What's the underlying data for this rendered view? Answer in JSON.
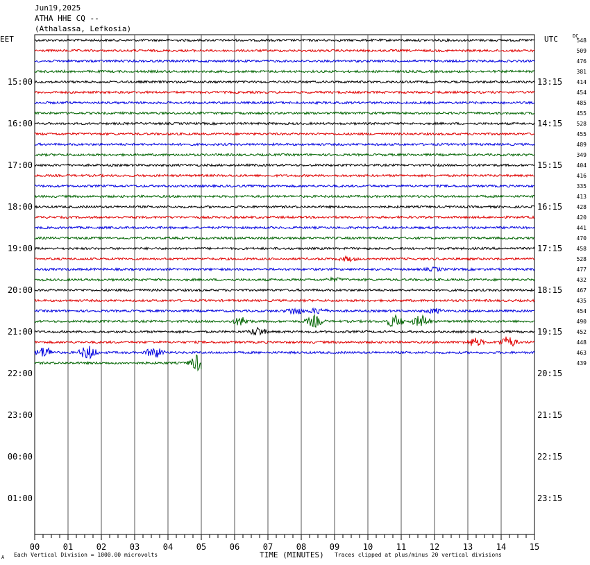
{
  "header": {
    "date": "Jun19,2025",
    "station": "ATHA HHE CQ --",
    "location": "(Athalassa, Lefkosia)"
  },
  "left_label": "EET",
  "right_label": "UTC",
  "dc_label": "DC",
  "footer": {
    "xlabel": "TIME (MINUTES)",
    "scale_note": "Each Vertical Division = 1000.00 microvolts",
    "clip_note": "Traces clipped at plus/minus 20 vertical divisions",
    "corner_mark": "A"
  },
  "chart_data": {
    "type": "line",
    "x_ticks": [
      "00",
      "01",
      "02",
      "03",
      "04",
      "05",
      "06",
      "07",
      "08",
      "09",
      "10",
      "11",
      "12",
      "13",
      "14",
      "15"
    ],
    "xlim": [
      0,
      15
    ],
    "grid": "vertical lines each minute",
    "left_hour_labels": [
      "15:00",
      "16:00",
      "17:00",
      "18:00",
      "19:00",
      "20:00",
      "21:00",
      "22:00",
      "23:00",
      "00:00",
      "01:00"
    ],
    "right_hour_labels": [
      "13:15",
      "14:15",
      "15:15",
      "16:15",
      "17:15",
      "18:15",
      "19:15",
      "20:15",
      "21:15",
      "22:15",
      "23:15"
    ],
    "trace_colors": [
      "#000000",
      "#e00000",
      "#0000e0",
      "#006400"
    ],
    "dc_offsets": [
      548,
      509,
      476,
      381,
      414,
      454,
      485,
      455,
      528,
      455,
      489,
      349,
      404,
      416,
      335,
      413,
      428,
      420,
      441,
      470,
      458,
      528,
      477,
      432,
      467,
      435,
      454,
      490,
      452,
      448,
      463,
      439
    ],
    "trace_minutes_recorded": [
      15,
      15,
      15,
      15,
      15,
      15,
      15,
      15,
      15,
      15,
      15,
      15,
      15,
      15,
      15,
      15,
      15,
      15,
      15,
      15,
      15,
      15,
      15,
      15,
      15,
      15,
      15,
      15,
      15,
      15,
      15,
      5
    ],
    "events": [
      {
        "trace": 21,
        "minute": 9.4,
        "amp": 3
      },
      {
        "trace": 23,
        "minute": 9.0,
        "amp": 2
      },
      {
        "trace": 22,
        "minute": 12.0,
        "amp": 2
      },
      {
        "trace": 26,
        "minute": 7.8,
        "amp": 5
      },
      {
        "trace": 26,
        "minute": 8.5,
        "amp": 4
      },
      {
        "trace": 26,
        "minute": 12.0,
        "amp": 3
      },
      {
        "trace": 27,
        "minute": 6.2,
        "amp": 6
      },
      {
        "trace": 27,
        "minute": 8.4,
        "amp": 8
      },
      {
        "trace": 27,
        "minute": 10.8,
        "amp": 9
      },
      {
        "trace": 27,
        "minute": 11.6,
        "amp": 9
      },
      {
        "trace": 28,
        "minute": 6.7,
        "amp": 6
      },
      {
        "trace": 29,
        "minute": 13.2,
        "amp": 6
      },
      {
        "trace": 29,
        "minute": 14.2,
        "amp": 8
      },
      {
        "trace": 30,
        "minute": 0.3,
        "amp": 8
      },
      {
        "trace": 30,
        "minute": 1.6,
        "amp": 10
      },
      {
        "trace": 30,
        "minute": 3.6,
        "amp": 8
      },
      {
        "trace": 31,
        "minute": 4.9,
        "amp": 12
      }
    ]
  }
}
